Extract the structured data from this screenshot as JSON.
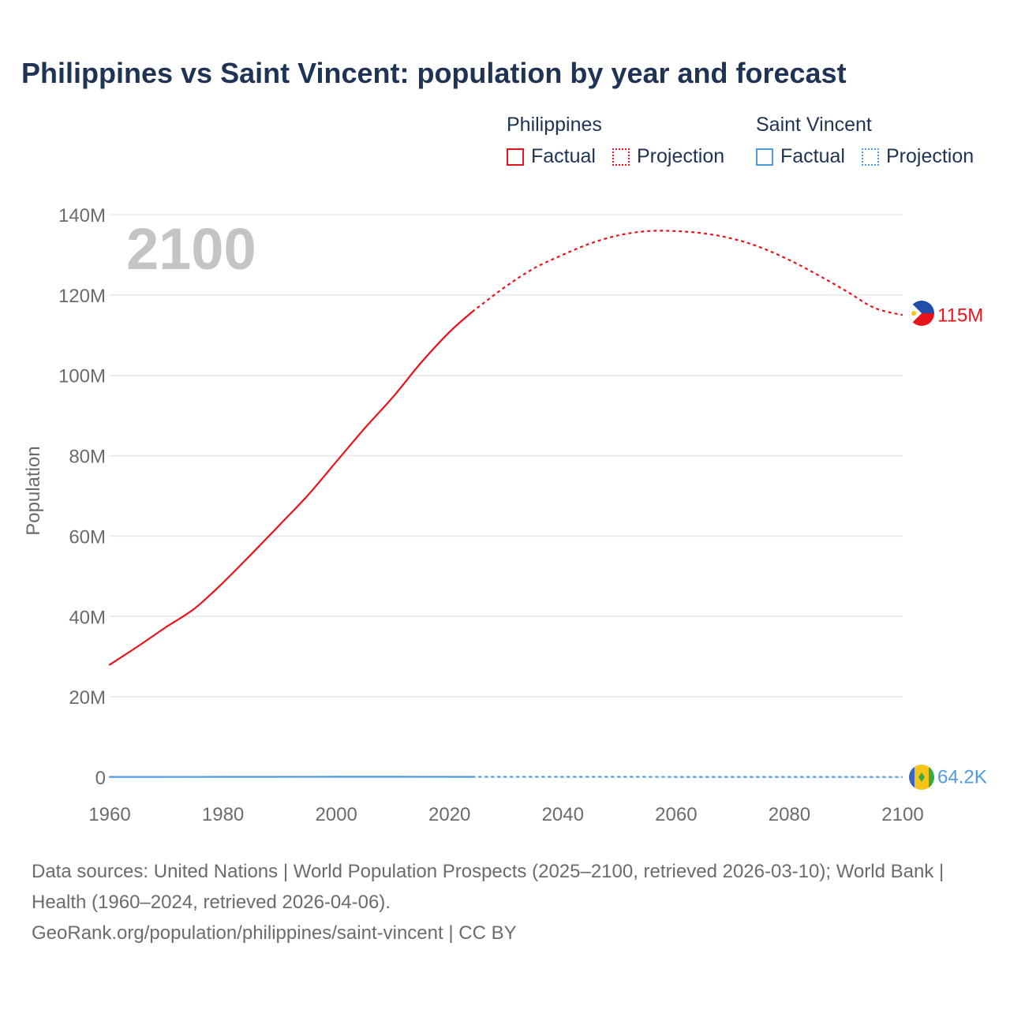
{
  "title": "Philippines vs Saint Vincent: population by year and forecast",
  "legend": {
    "groups": [
      {
        "name": "Philippines",
        "color": "#e8131b",
        "factual_label": "Factual",
        "projection_label": "Projection"
      },
      {
        "name": "Saint Vincent",
        "color": "#4f9be0",
        "factual_label": "Factual",
        "projection_label": "Projection"
      }
    ]
  },
  "year_display": "2100",
  "footer": {
    "sources": "Data sources: United Nations | World Population Prospects (2025–2100, retrieved 2026-03-10); World Bank | Health (1960–2024, retrieved 2026-04-06).",
    "credit": "GeoRank.org/population/philippines/saint-vincent | CC BY"
  },
  "chart_data": {
    "type": "line",
    "title": "Philippines vs Saint Vincent: population by year and forecast",
    "xlabel": "",
    "ylabel": "Population",
    "xlim": [
      1960,
      2100
    ],
    "ylim": [
      0,
      140000000
    ],
    "x_ticks": [
      1960,
      1980,
      2000,
      2020,
      2040,
      2060,
      2080,
      2100
    ],
    "x_tick_labels": [
      "1960",
      "1980",
      "2000",
      "2020",
      "2040",
      "2060",
      "2080",
      "2100"
    ],
    "y_ticks": [
      0,
      20000000,
      40000000,
      60000000,
      80000000,
      100000000,
      120000000,
      140000000
    ],
    "y_tick_labels": [
      "0",
      "20M",
      "40M",
      "60M",
      "80M",
      "100M",
      "120M",
      "140M"
    ],
    "grid": true,
    "series": [
      {
        "name": "Philippines",
        "color": "#e8131b",
        "end_label": "115M",
        "factual": {
          "x": [
            1960,
            1965,
            1970,
            1975,
            1980,
            1985,
            1990,
            1995,
            2000,
            2005,
            2010,
            2015,
            2020,
            2024
          ],
          "y": [
            28000000,
            32600000,
            37400000,
            42000000,
            48400000,
            55500000,
            62800000,
            70200000,
            78500000,
            86800000,
            94600000,
            103200000,
            110800000,
            115800000
          ]
        },
        "projection": {
          "x": [
            2024,
            2030,
            2035,
            2040,
            2045,
            2050,
            2055,
            2060,
            2065,
            2070,
            2075,
            2080,
            2085,
            2090,
            2095,
            2100
          ],
          "y": [
            115800000,
            122200000,
            126700000,
            130000000,
            132900000,
            134900000,
            135900000,
            135900000,
            135300000,
            134000000,
            131800000,
            128700000,
            125000000,
            121000000,
            116800000,
            115000000
          ]
        }
      },
      {
        "name": "Saint Vincent",
        "color": "#4f9be0",
        "end_label": "64.2K",
        "factual": {
          "x": [
            1960,
            1970,
            1980,
            1990,
            2000,
            2010,
            2020,
            2024
          ],
          "y": [
            81000,
            87000,
            98000,
            107000,
            108000,
            109000,
            104000,
            101000
          ]
        },
        "projection": {
          "x": [
            2024,
            2040,
            2060,
            2080,
            2100
          ],
          "y": [
            101000,
            95000,
            85000,
            74000,
            64200
          ]
        }
      }
    ]
  }
}
